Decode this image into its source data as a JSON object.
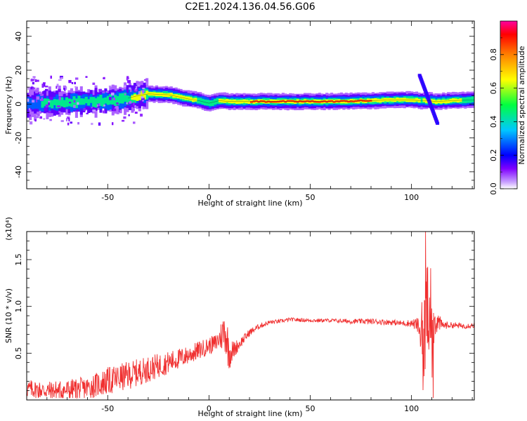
{
  "title": "C2E1.2024.136.04.56.G06",
  "chart_data": [
    {
      "type": "heatmap",
      "xlabel": "Height of straight line (km)",
      "ylabel": "Frequency (Hz)",
      "xlim": [
        -90,
        131
      ],
      "ylim": [
        -50,
        49
      ],
      "xticks": [
        -50,
        0,
        50,
        100
      ],
      "yticks": [
        -40,
        -20,
        0,
        20,
        40
      ],
      "colorbar": {
        "label": "Normalized spectral amplitude",
        "range": [
          0,
          1
        ],
        "ticks": [
          "0.0",
          "0.2",
          "0.4",
          "0.6",
          "0.8"
        ],
        "colors": [
          "#ffffff",
          "#7f00ff",
          "#0000ff",
          "#00c8ff",
          "#00ff40",
          "#ffff00",
          "#ff8000",
          "#ff0000",
          "#ff00a0"
        ]
      },
      "ridge": {
        "x": [
          -90,
          -80,
          -70,
          -60,
          -50,
          -40,
          -35,
          -30,
          -20,
          -10,
          -5,
          0,
          5,
          10,
          20,
          40,
          60,
          80,
          90,
          100,
          104,
          108,
          112,
          120,
          131
        ],
        "freq_hz": [
          0,
          0.5,
          1,
          1.5,
          2,
          3.5,
          5,
          6,
          5.5,
          3,
          2,
          0.5,
          2,
          1.5,
          1.5,
          1.5,
          1.5,
          2,
          2.5,
          2.5,
          2,
          2,
          1.5,
          2,
          2.5
        ],
        "amplitude": [
          0.35,
          0.45,
          0.5,
          0.5,
          0.55,
          0.6,
          0.75,
          0.85,
          0.8,
          0.7,
          0.6,
          0.5,
          0.65,
          0.7,
          0.85,
          0.95,
          0.95,
          0.85,
          0.8,
          0.8,
          0.6,
          0.7,
          0.8,
          0.7,
          0.5
        ]
      },
      "features": [
        {
          "x": [
            104,
            113
          ],
          "freq_hz": [
            17,
            -12
          ],
          "amplitude": 0.2
        },
        {
          "x": [
            -90,
            -40
          ],
          "freq_hz": [
            -10,
            14
          ],
          "amplitude": 0.15
        }
      ]
    },
    {
      "type": "line",
      "xlabel": "Height of straight line (km)",
      "ylabel": "SNR (10 * v/v)",
      "scale_note": "(x10⁴)",
      "xlim": [
        -90,
        131
      ],
      "ylim": [
        0,
        1.8
      ],
      "xticks": [
        -50,
        0,
        50,
        100
      ],
      "yticks": [
        "0.5",
        "1.0",
        "1.5"
      ],
      "series_color": "#f03030",
      "series": [
        {
          "x": [
            -90,
            -80,
            -70,
            -60,
            -50,
            -40,
            -30,
            -20,
            -10,
            -5,
            0,
            3,
            5,
            7,
            8,
            9,
            10,
            12,
            15,
            20,
            25,
            30,
            35,
            40,
            50,
            60,
            70,
            80,
            90,
            95,
            100,
            103,
            105,
            106,
            107,
            108,
            109,
            110,
            112,
            115,
            120,
            125,
            131
          ],
          "y": [
            0.12,
            0.1,
            0.1,
            0.13,
            0.2,
            0.26,
            0.33,
            0.4,
            0.48,
            0.53,
            0.58,
            0.6,
            0.65,
            0.72,
            0.75,
            0.62,
            0.5,
            0.53,
            0.6,
            0.72,
            0.79,
            0.83,
            0.84,
            0.86,
            0.85,
            0.85,
            0.84,
            0.84,
            0.83,
            0.82,
            0.82,
            0.8,
            0.7,
            0.5,
            0.85,
            1.0,
            0.6,
            0.75,
            0.85,
            0.8,
            0.8,
            0.79,
            0.8
          ],
          "noise": [
            0.1,
            0.1,
            0.12,
            0.12,
            0.15,
            0.15,
            0.14,
            0.12,
            0.1,
            0.1,
            0.09,
            0.1,
            0.12,
            0.2,
            0.25,
            0.25,
            0.18,
            0.1,
            0.06,
            0.04,
            0.03,
            0.025,
            0.02,
            0.02,
            0.02,
            0.02,
            0.025,
            0.03,
            0.03,
            0.03,
            0.04,
            0.08,
            0.2,
            0.4,
            0.6,
            0.5,
            0.45,
            0.3,
            0.15,
            0.05,
            0.03,
            0.03,
            0.03
          ]
        }
      ]
    }
  ]
}
